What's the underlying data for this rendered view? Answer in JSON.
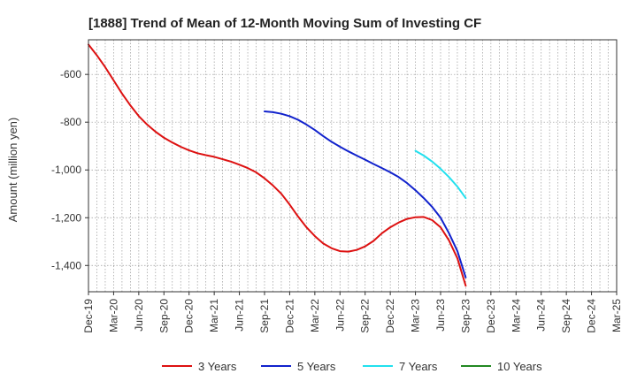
{
  "chart_data": {
    "type": "line",
    "title": "[1888]  Trend of Mean of 12-Month Moving Sum of Investing CF",
    "xlabel": "",
    "ylabel": "Amount (million yen)",
    "ylim": [
      -1510,
      -455
    ],
    "yticks": [
      -600,
      -800,
      -1000,
      -1200,
      -1400
    ],
    "ytick_labels": [
      "-600",
      "-800",
      "-1,000",
      "-1,200",
      "-1,400"
    ],
    "grid": true,
    "legend_position": "bottom",
    "x_tick_labels": [
      "Dec-19",
      "Mar-20",
      "Jun-20",
      "Sep-20",
      "Dec-20",
      "Mar-21",
      "Jun-21",
      "Sep-21",
      "Dec-21",
      "Mar-22",
      "Jun-22",
      "Sep-22",
      "Dec-22",
      "Mar-23",
      "Jun-23",
      "Sep-23",
      "Dec-23",
      "Mar-24",
      "Jun-24",
      "Sep-24",
      "Dec-24",
      "Mar-25"
    ],
    "x_months_total": 63,
    "series": [
      {
        "name": "3 Years",
        "color": "#dd1111",
        "x_start": 0,
        "values": [
          -475,
          -520,
          -570,
          -625,
          -680,
          -730,
          -775,
          -810,
          -840,
          -865,
          -885,
          -903,
          -918,
          -930,
          -938,
          -945,
          -955,
          -965,
          -978,
          -992,
          -1010,
          -1035,
          -1065,
          -1100,
          -1145,
          -1195,
          -1240,
          -1277,
          -1308,
          -1328,
          -1340,
          -1342,
          -1335,
          -1320,
          -1297,
          -1265,
          -1240,
          -1220,
          -1205,
          -1198,
          -1197,
          -1210,
          -1240,
          -1295,
          -1370,
          -1485
        ]
      },
      {
        "name": "5 Years",
        "color": "#1122cc",
        "x_start": 21,
        "values": [
          -755,
          -758,
          -765,
          -775,
          -790,
          -810,
          -833,
          -858,
          -882,
          -903,
          -922,
          -940,
          -957,
          -975,
          -992,
          -1010,
          -1030,
          -1055,
          -1085,
          -1118,
          -1155,
          -1200,
          -1265,
          -1340,
          -1450
        ]
      },
      {
        "name": "7 Years",
        "color": "#22e0ee",
        "x_start": 39,
        "values": [
          -920,
          -940,
          -965,
          -995,
          -1030,
          -1070,
          -1118
        ]
      },
      {
        "name": "10 Years",
        "color": "#228822",
        "x_start": 0,
        "values": []
      }
    ]
  }
}
